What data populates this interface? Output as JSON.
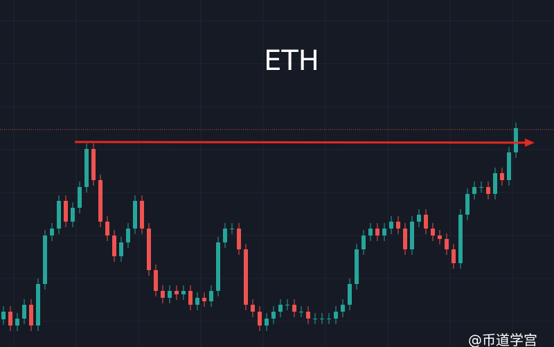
{
  "chart_data": {
    "type": "candlestick",
    "title": "ETH",
    "watermark": "@币道学宫",
    "ylim": [
      0,
      501
    ],
    "up_color": "#26a69a",
    "down_color": "#ef5350",
    "open": [
      40,
      51,
      31,
      41,
      61,
      31,
      91,
      161,
      171,
      211,
      181,
      201,
      231,
      286,
      241,
      181,
      161,
      131,
      151,
      171,
      211,
      171,
      111,
      81,
      71,
      81,
      76,
      81,
      61,
      71,
      66,
      81,
      151,
      171,
      171,
      141,
      61,
      51,
      31,
      41,
      51,
      61,
      61,
      51,
      51,
      41,
      41,
      41,
      41,
      51,
      61,
      91,
      141,
      161,
      171,
      161,
      171,
      181,
      171,
      141,
      181,
      191,
      171,
      161,
      156,
      141,
      121,
      191,
      221,
      231,
      231,
      221,
      251,
      241,
      281
    ],
    "high": [
      59,
      59,
      49,
      69,
      69,
      99,
      169,
      179,
      219,
      219,
      209,
      239,
      294,
      294,
      249,
      189,
      169,
      159,
      179,
      219,
      219,
      179,
      119,
      89,
      89,
      89,
      89,
      89,
      79,
      79,
      89,
      159,
      179,
      179,
      179,
      149,
      69,
      59,
      49,
      59,
      69,
      69,
      69,
      59,
      59,
      49,
      49,
      49,
      59,
      69,
      99,
      149,
      169,
      179,
      179,
      179,
      189,
      189,
      179,
      189,
      199,
      199,
      179,
      169,
      164,
      149,
      199,
      229,
      239,
      239,
      239,
      259,
      259,
      289,
      324
    ],
    "low": [
      32,
      23,
      23,
      33,
      23,
      23,
      83,
      153,
      163,
      173,
      173,
      193,
      223,
      233,
      173,
      153,
      123,
      123,
      143,
      163,
      163,
      103,
      73,
      63,
      63,
      68,
      68,
      53,
      53,
      58,
      58,
      73,
      143,
      163,
      133,
      53,
      43,
      23,
      23,
      33,
      43,
      53,
      43,
      43,
      33,
      33,
      33,
      33,
      33,
      43,
      53,
      83,
      133,
      153,
      153,
      153,
      163,
      163,
      133,
      133,
      173,
      163,
      153,
      148,
      133,
      113,
      113,
      183,
      213,
      223,
      213,
      213,
      233,
      233,
      273
    ],
    "close": [
      51,
      31,
      41,
      61,
      31,
      91,
      161,
      171,
      211,
      181,
      201,
      231,
      286,
      241,
      181,
      161,
      131,
      151,
      171,
      211,
      171,
      111,
      81,
      71,
      81,
      76,
      81,
      61,
      71,
      66,
      81,
      151,
      171,
      171,
      141,
      61,
      51,
      31,
      41,
      51,
      61,
      61,
      51,
      51,
      41,
      41,
      41,
      41,
      51,
      61,
      91,
      141,
      161,
      171,
      161,
      171,
      181,
      171,
      141,
      181,
      191,
      171,
      161,
      156,
      141,
      121,
      191,
      221,
      231,
      231,
      221,
      251,
      241,
      281,
      316
    ]
  }
}
